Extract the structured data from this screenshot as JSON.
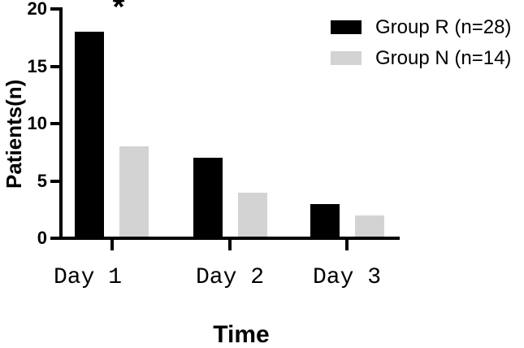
{
  "chart_data": {
    "type": "bar",
    "title": "",
    "xlabel": "Time",
    "ylabel": "Patients(n)",
    "categories": [
      "Day 1",
      "Day 2",
      "Day 3"
    ],
    "series": [
      {
        "name": "Group R (n=28)",
        "color": "#000000",
        "values": [
          18,
          7,
          3
        ]
      },
      {
        "name": "Group N (n=14)",
        "color": "#d3d3d3",
        "values": [
          8,
          4,
          2
        ]
      }
    ],
    "ylim": [
      0,
      20
    ],
    "yticks": [
      0,
      5,
      10,
      15,
      20
    ],
    "grid": false,
    "legend_position": "top-right",
    "annotations": [
      {
        "text": "*",
        "meaning": "statistical significance",
        "category": "Day 1"
      }
    ]
  }
}
